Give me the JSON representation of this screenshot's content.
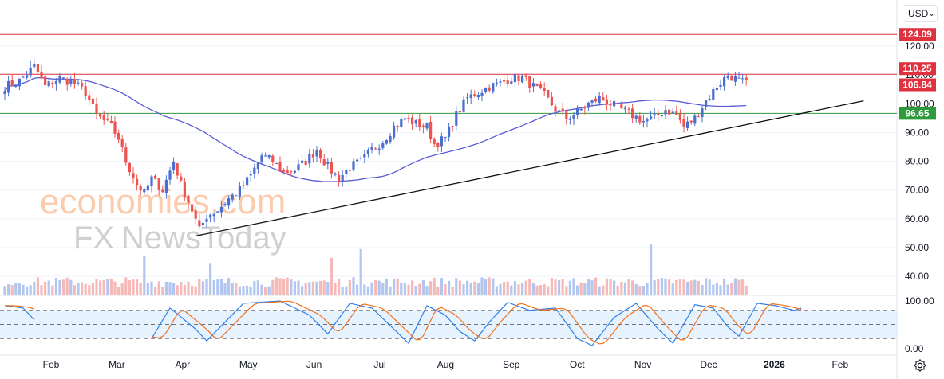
{
  "toolbar": {
    "currency_label": "USD",
    "currency_chevron": "⌄",
    "settings_icon": "gear-icon"
  },
  "colors": {
    "up": "#4a6fd1",
    "down": "#ef5350",
    "ma": "#5b5bd6",
    "trendline": "#111111",
    "resistance": "#e0313f",
    "support": "#2e9a3c",
    "dotted": "#e08a2e",
    "stoch_k": "#2f80ed",
    "stoch_d": "#f2711c",
    "stoch_band": "#d6e9fb",
    "axis_text": "#131722",
    "grid": "#f0f3fa"
  },
  "watermark": {
    "line1": "economies.com",
    "line2_fx": "FX",
    "line2_rest": "NewsToday"
  },
  "chart_data": {
    "type": "candlestick",
    "title": "",
    "price_axis": {
      "ylim": [
        35,
        128
      ],
      "ticks": [
        "120.00",
        "110.00",
        "100.00",
        "90.00",
        "80.00",
        "70.00",
        "60.00",
        "50.00",
        "40.00"
      ]
    },
    "time_axis": {
      "labels": [
        "Feb",
        "Mar",
        "Apr",
        "May",
        "Jun",
        "Jul",
        "Aug",
        "Sep",
        "Oct",
        "Nov",
        "Dec",
        "2026",
        "Feb"
      ],
      "bold_label": "2026"
    },
    "levels": [
      {
        "name": "resistance-top",
        "value": 124.09,
        "label": "124.09",
        "color": "#e0313f"
      },
      {
        "name": "resistance",
        "value": 110.25,
        "label": "110.25",
        "color": "#e0313f"
      },
      {
        "name": "last-price",
        "value": 106.84,
        "label": "106.84",
        "color": "#e08a2e",
        "dotted": true
      },
      {
        "name": "support",
        "value": 96.65,
        "label": "96.65",
        "color": "#2e9a3c"
      }
    ],
    "anchors": [
      [
        0,
        106
      ],
      [
        4,
        108
      ],
      [
        8,
        113
      ],
      [
        11,
        106
      ],
      [
        15,
        109
      ],
      [
        19,
        107
      ],
      [
        22,
        104
      ],
      [
        25,
        96
      ],
      [
        29,
        92
      ],
      [
        31,
        88
      ],
      [
        33,
        80
      ],
      [
        36,
        72
      ],
      [
        38,
        69
      ],
      [
        40,
        74
      ],
      [
        43,
        70
      ],
      [
        46,
        80
      ],
      [
        48,
        72
      ],
      [
        51,
        63
      ],
      [
        53,
        56
      ],
      [
        55,
        61
      ],
      [
        58,
        63
      ],
      [
        61,
        67
      ],
      [
        64,
        70
      ],
      [
        67,
        75
      ],
      [
        70,
        82
      ],
      [
        73,
        80
      ],
      [
        76,
        76
      ],
      [
        79,
        77
      ],
      [
        82,
        80
      ],
      [
        85,
        84
      ],
      [
        88,
        78
      ],
      [
        91,
        74
      ],
      [
        94,
        78
      ],
      [
        97,
        80
      ],
      [
        100,
        84
      ],
      [
        103,
        87
      ],
      [
        106,
        92
      ],
      [
        109,
        95
      ],
      [
        112,
        93
      ],
      [
        115,
        92
      ],
      [
        117,
        86
      ],
      [
        120,
        88
      ],
      [
        123,
        96
      ],
      [
        126,
        102
      ],
      [
        129,
        104
      ],
      [
        132,
        106
      ],
      [
        135,
        107
      ],
      [
        138,
        109
      ],
      [
        141,
        109
      ],
      [
        144,
        106
      ],
      [
        147,
        103
      ],
      [
        150,
        98
      ],
      [
        153,
        95
      ],
      [
        156,
        97
      ],
      [
        159,
        100
      ],
      [
        162,
        102
      ],
      [
        165,
        100
      ],
      [
        168,
        98
      ],
      [
        171,
        96
      ],
      [
        174,
        94
      ],
      [
        177,
        95
      ],
      [
        180,
        98
      ],
      [
        183,
        96
      ],
      [
        185,
        92
      ],
      [
        188,
        95
      ],
      [
        191,
        101
      ],
      [
        194,
        106
      ],
      [
        197,
        110
      ],
      [
        200,
        108
      ],
      [
        202,
        107
      ]
    ],
    "candle_count": 203,
    "moving_average": {
      "period": 55,
      "last_value": 100
    },
    "trendline": {
      "from": [
        52,
        54
      ],
      "to": [
        234,
        101
      ]
    },
    "volume": {
      "bars": 203,
      "spikes": [
        [
          38,
          2.2
        ],
        [
          89,
          2.1
        ],
        [
          97,
          2.6
        ],
        [
          176,
          2.9
        ],
        [
          56,
          1.8
        ]
      ]
    },
    "stochastic": {
      "ylim": [
        0,
        100
      ],
      "ticks": [
        "100.00",
        "0.00"
      ],
      "upper": 80,
      "lower": 20,
      "k_anchors": [
        [
          0,
          90
        ],
        [
          5,
          85
        ],
        [
          8,
          60
        ],
        [
          40,
          20
        ],
        [
          45,
          85
        ],
        [
          52,
          40
        ],
        [
          55,
          15
        ],
        [
          60,
          55
        ],
        [
          65,
          95
        ],
        [
          75,
          100
        ],
        [
          83,
          70
        ],
        [
          88,
          30
        ],
        [
          94,
          95
        ],
        [
          100,
          85
        ],
        [
          106,
          40
        ],
        [
          110,
          10
        ],
        [
          115,
          90
        ],
        [
          120,
          70
        ],
        [
          124,
          35
        ],
        [
          128,
          15
        ],
        [
          132,
          55
        ],
        [
          137,
          97
        ],
        [
          143,
          80
        ],
        [
          150,
          85
        ],
        [
          156,
          20
        ],
        [
          160,
          5
        ],
        [
          166,
          65
        ],
        [
          172,
          95
        ],
        [
          178,
          40
        ],
        [
          182,
          10
        ],
        [
          188,
          92
        ],
        [
          193,
          85
        ],
        [
          197,
          45
        ],
        [
          200,
          25
        ],
        [
          205,
          95
        ],
        [
          210,
          90
        ],
        [
          215,
          80
        ],
        [
          217,
          85
        ]
      ],
      "k_break_end": 8,
      "k_resume": 40
    }
  }
}
